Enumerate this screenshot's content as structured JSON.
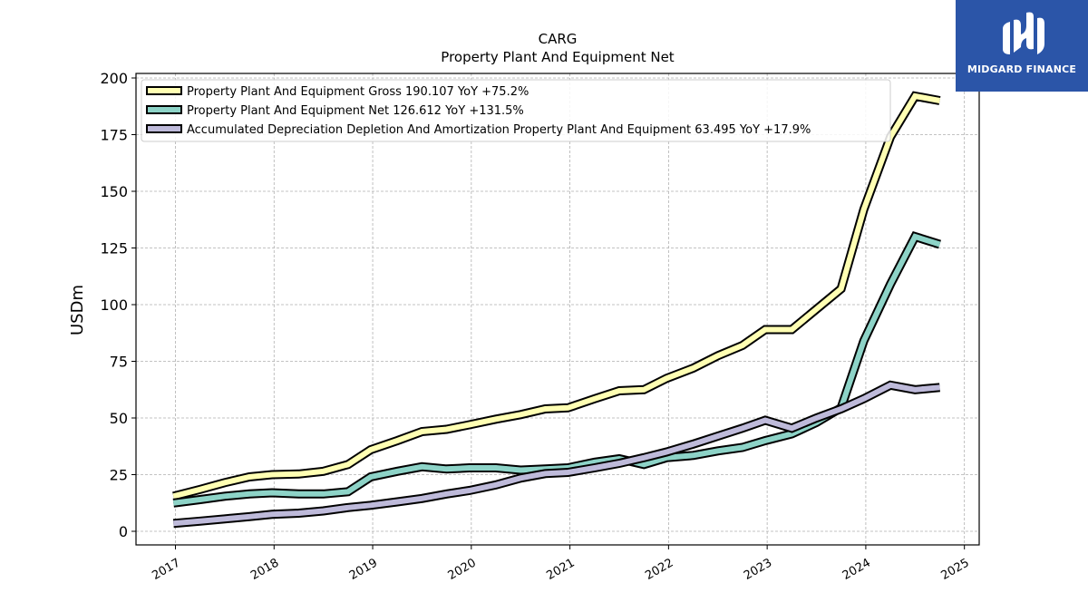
{
  "chart_data": {
    "type": "line",
    "title": "CARG",
    "subtitle": "Property Plant And Equipment Net",
    "ylabel": "USDm",
    "xlabel": "",
    "ylim": [
      -6,
      202
    ],
    "xlim": [
      2016.6,
      2025.15
    ],
    "yticks": [
      0,
      25,
      50,
      75,
      100,
      125,
      150,
      175,
      200
    ],
    "xticks": [
      2017,
      2018,
      2019,
      2020,
      2021,
      2022,
      2023,
      2024,
      2025
    ],
    "grid": true,
    "legend_position": "top-left",
    "series": [
      {
        "name": "Property Plant And Equipment Gross",
        "legend_label": "Property Plant And Equipment Gross  190.107 YoY +75.2%",
        "color": "#ffffb3",
        "x": [
          2016.98,
          2017.25,
          2017.5,
          2017.75,
          2017.98,
          2018.25,
          2018.5,
          2018.75,
          2018.98,
          2019.25,
          2019.5,
          2019.75,
          2019.98,
          2020.25,
          2020.5,
          2020.75,
          2020.98,
          2021.25,
          2021.5,
          2021.75,
          2021.98,
          2022.25,
          2022.5,
          2022.75,
          2022.98,
          2023.25,
          2023.5,
          2023.75,
          2023.98,
          2024.25,
          2024.5,
          2024.75
        ],
        "y": [
          15.5,
          18.5,
          21.5,
          24,
          25,
          25.3,
          26.5,
          29.5,
          36,
          40,
          44,
          45,
          47,
          49.5,
          51.5,
          54,
          54.5,
          58.5,
          62,
          62.5,
          67.5,
          72,
          77.5,
          82,
          89,
          89,
          98,
          107,
          142,
          174,
          192,
          190
        ]
      },
      {
        "name": "Property Plant And Equipment Net",
        "legend_label": "Property Plant And Equipment Net  126.612 YoY +131.5%",
        "color": "#8dd3c7",
        "x": [
          2016.98,
          2017.25,
          2017.5,
          2017.75,
          2017.98,
          2018.25,
          2018.5,
          2018.75,
          2018.98,
          2019.25,
          2019.5,
          2019.75,
          2019.98,
          2020.25,
          2020.5,
          2020.75,
          2020.98,
          2021.25,
          2021.5,
          2021.75,
          2021.98,
          2022.25,
          2022.5,
          2022.75,
          2022.98,
          2023.25,
          2023.5,
          2023.75,
          2023.98,
          2024.25,
          2024.5,
          2024.75
        ],
        "y": [
          12.5,
          14,
          15.5,
          16.5,
          17,
          16.5,
          16.5,
          17.5,
          24,
          26.5,
          28.5,
          27.5,
          28,
          28,
          27,
          27.5,
          28,
          30.5,
          32,
          29.5,
          32.5,
          33.5,
          35.5,
          37,
          40,
          43,
          48,
          54.5,
          84,
          109,
          130,
          126.6
        ]
      },
      {
        "name": "Accumulated Depreciation Depletion And Amortization Property Plant And Equipment",
        "legend_label": "Accumulated Depreciation Depletion And Amortization Property Plant And Equipment  63.495 YoY +17.9%",
        "color": "#bebada",
        "x": [
          2016.98,
          2017.25,
          2017.5,
          2017.75,
          2017.98,
          2018.25,
          2018.5,
          2018.75,
          2018.98,
          2019.25,
          2019.5,
          2019.75,
          2019.98,
          2020.25,
          2020.5,
          2020.75,
          2020.98,
          2021.25,
          2021.5,
          2021.75,
          2021.98,
          2022.25,
          2022.5,
          2022.75,
          2022.98,
          2023.25,
          2023.5,
          2023.75,
          2023.98,
          2024.25,
          2024.5,
          2024.75
        ],
        "y": [
          3.5,
          4.5,
          5.5,
          6.5,
          7.5,
          8,
          9,
          10.5,
          11.5,
          13,
          14.5,
          16.5,
          18,
          20.5,
          23.5,
          25.5,
          26,
          28,
          30,
          32.5,
          35,
          38.5,
          42,
          45.5,
          49,
          45.5,
          50,
          54,
          58.5,
          64.5,
          62.5,
          63.5
        ]
      }
    ]
  },
  "logo": {
    "text": "MIDGARD FINANCE",
    "color": "#2b55a8"
  }
}
